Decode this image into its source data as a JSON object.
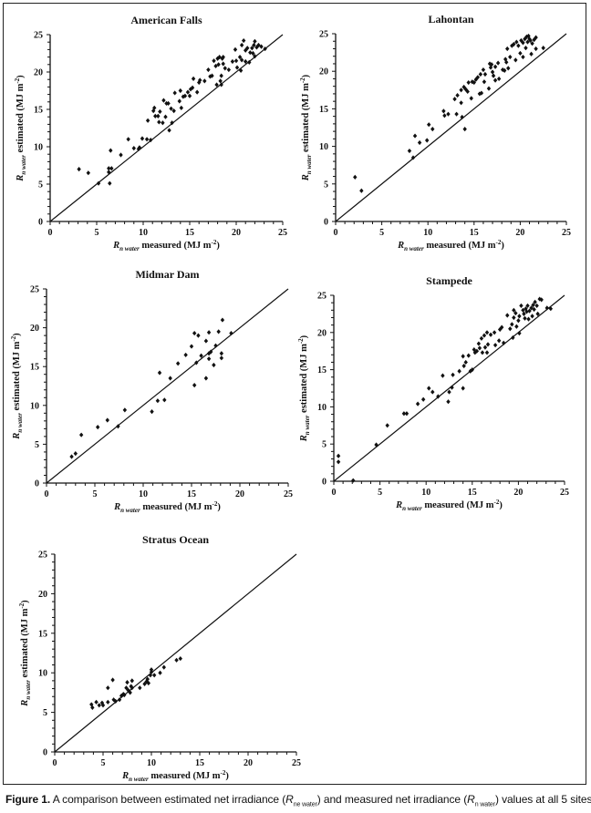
{
  "caption": {
    "label": "Figure 1.",
    "text1": " A comparison between estimated net irradiance (",
    "sym1": "R",
    "sub1": "ne water",
    "text2": ") and measured net irradiance (",
    "sym2": "R",
    "sub2": "n water",
    "text3": ") values at all 5 sites"
  },
  "axis_labels": {
    "symbol": "R",
    "subscript": "n water",
    "y_text": " estimated (MJ m",
    "x_text": " measured (MJ m",
    "exponent": "-2",
    "close": ")"
  },
  "chart_data": [
    {
      "type": "scatter",
      "title": "American Falls",
      "xlim": [
        0,
        25
      ],
      "ylim": [
        0,
        25
      ],
      "xticks": [
        0,
        5,
        10,
        15,
        20,
        25
      ],
      "yticks": [
        0,
        5,
        10,
        15,
        20,
        25
      ],
      "reference_line": "1:1",
      "points": [
        [
          3.1,
          7
        ],
        [
          4.1,
          6.5
        ],
        [
          5.2,
          5.1
        ],
        [
          6.3,
          7.1
        ],
        [
          6.3,
          6.6
        ],
        [
          6.4,
          5.1
        ],
        [
          6.5,
          9.5
        ],
        [
          6.6,
          7.1
        ],
        [
          7.6,
          8.9
        ],
        [
          8.4,
          11
        ],
        [
          9,
          9.8
        ],
        [
          9.5,
          9.7
        ],
        [
          9.6,
          9.9
        ],
        [
          9.9,
          11.1
        ],
        [
          10.4,
          11
        ],
        [
          10.5,
          13.5
        ],
        [
          10.8,
          10.9
        ],
        [
          11.1,
          14.8
        ],
        [
          11.2,
          15.2
        ],
        [
          11.3,
          14.1
        ],
        [
          11.6,
          14.1
        ],
        [
          11.7,
          13.3
        ],
        [
          11.8,
          14.7
        ],
        [
          12.1,
          13.2
        ],
        [
          12.2,
          16.2
        ],
        [
          12.4,
          14
        ],
        [
          12.5,
          15.8
        ],
        [
          12.7,
          15.8
        ],
        [
          12.8,
          12.2
        ],
        [
          13,
          15.1
        ],
        [
          13.1,
          13.2
        ],
        [
          13.3,
          14.8
        ],
        [
          13.4,
          17.2
        ],
        [
          13.9,
          16.1
        ],
        [
          14,
          17.5
        ],
        [
          14.1,
          15.2
        ],
        [
          14.3,
          16.7
        ],
        [
          14.5,
          16.8
        ],
        [
          14.8,
          17.3
        ],
        [
          15,
          16.8
        ],
        [
          15.1,
          17.7
        ],
        [
          15.3,
          17.9
        ],
        [
          15.4,
          19.1
        ],
        [
          15.8,
          17.3
        ],
        [
          16,
          18.6
        ],
        [
          16.1,
          18.9
        ],
        [
          16.6,
          18.8
        ],
        [
          17,
          20.3
        ],
        [
          17.2,
          19.4
        ],
        [
          17.4,
          19.5
        ],
        [
          17.6,
          21.5
        ],
        [
          17.8,
          20.8
        ],
        [
          17.9,
          18.3
        ],
        [
          18,
          21.8
        ],
        [
          18.1,
          21
        ],
        [
          18.2,
          22
        ],
        [
          18.3,
          18.8
        ],
        [
          18.4,
          19.5
        ],
        [
          18.4,
          18.3
        ],
        [
          18.5,
          21.8
        ],
        [
          18.6,
          22
        ],
        [
          18.6,
          21.1
        ],
        [
          18.8,
          20.5
        ],
        [
          19.2,
          20.3
        ],
        [
          19.6,
          21.4
        ],
        [
          19.9,
          23
        ],
        [
          20,
          21.5
        ],
        [
          20.1,
          20.6
        ],
        [
          20.4,
          22
        ],
        [
          20.5,
          20.2
        ],
        [
          20.6,
          21.6
        ],
        [
          20.6,
          23.6
        ],
        [
          20.8,
          24.2
        ],
        [
          21,
          22.9
        ],
        [
          21,
          21.4
        ],
        [
          21.2,
          23.2
        ],
        [
          21.4,
          21.3
        ],
        [
          21.5,
          22.6
        ],
        [
          21.7,
          23.2
        ],
        [
          21.8,
          22.5
        ],
        [
          21.9,
          23.6
        ],
        [
          22,
          22.1
        ],
        [
          22,
          24.1
        ],
        [
          22.2,
          23.3
        ],
        [
          22.4,
          23.6
        ],
        [
          22.7,
          23.4
        ],
        [
          23.1,
          23.1
        ]
      ]
    },
    {
      "type": "scatter",
      "title": "Lahontan",
      "xlim": [
        0,
        25
      ],
      "ylim": [
        0,
        25
      ],
      "xticks": [
        0,
        5,
        10,
        15,
        20,
        25
      ],
      "yticks": [
        0,
        5,
        10,
        15,
        20,
        25
      ],
      "reference_line": "1:1",
      "points": [
        [
          2.1,
          5.9
        ],
        [
          2.8,
          4.1
        ],
        [
          8,
          9.4
        ],
        [
          8.4,
          8.5
        ],
        [
          8.6,
          11.4
        ],
        [
          9.1,
          10.5
        ],
        [
          9.9,
          10.8
        ],
        [
          10.1,
          12.9
        ],
        [
          10.5,
          12.3
        ],
        [
          11.7,
          14.7
        ],
        [
          11.8,
          14.1
        ],
        [
          12.2,
          14.3
        ],
        [
          12.9,
          16.3
        ],
        [
          13.1,
          14.3
        ],
        [
          13.2,
          16.8
        ],
        [
          13.6,
          15.8
        ],
        [
          13.6,
          17.5
        ],
        [
          13.7,
          13.9
        ],
        [
          13.9,
          17.9
        ],
        [
          14,
          12.3
        ],
        [
          14.1,
          17.6
        ],
        [
          14.3,
          17.3
        ],
        [
          14.4,
          18.5
        ],
        [
          14.7,
          16.4
        ],
        [
          14.8,
          18.6
        ],
        [
          15,
          18.5
        ],
        [
          15.2,
          18.9
        ],
        [
          15.4,
          19.2
        ],
        [
          15.6,
          17
        ],
        [
          15.7,
          19.6
        ],
        [
          15.8,
          17.1
        ],
        [
          16,
          20.2
        ],
        [
          16.1,
          18.6
        ],
        [
          16.2,
          19.6
        ],
        [
          16.6,
          17.7
        ],
        [
          16.7,
          21
        ],
        [
          16.8,
          20.5
        ],
        [
          16.9,
          20.9
        ],
        [
          17,
          19.9
        ],
        [
          17.1,
          19.4
        ],
        [
          17.3,
          18.8
        ],
        [
          17.3,
          20.6
        ],
        [
          17.6,
          21.1
        ],
        [
          17.7,
          19
        ],
        [
          18.1,
          20.2
        ],
        [
          18.3,
          20.1
        ],
        [
          18.4,
          21.6
        ],
        [
          18.5,
          21.2
        ],
        [
          18.6,
          23
        ],
        [
          18.7,
          20.4
        ],
        [
          18.9,
          21.9
        ],
        [
          19.1,
          23.4
        ],
        [
          19.3,
          23.6
        ],
        [
          19.5,
          21.5
        ],
        [
          19.6,
          23.9
        ],
        [
          19.8,
          23.4
        ],
        [
          20,
          22.4
        ],
        [
          20.1,
          24.1
        ],
        [
          20.3,
          23.8
        ],
        [
          20.3,
          21.9
        ],
        [
          20.5,
          24.3
        ],
        [
          20.6,
          23.1
        ],
        [
          20.7,
          24.6
        ],
        [
          20.8,
          23.9
        ],
        [
          20.9,
          24.7
        ],
        [
          21,
          24.3
        ],
        [
          21.1,
          24.1
        ],
        [
          21.2,
          22.3
        ],
        [
          21.3,
          23.7
        ],
        [
          21.5,
          24.2
        ],
        [
          21.7,
          24.5
        ],
        [
          21.7,
          23
        ],
        [
          22.5,
          23.1
        ]
      ]
    },
    {
      "type": "scatter",
      "title": "Midmar Dam",
      "xlim": [
        0,
        25
      ],
      "ylim": [
        0,
        25
      ],
      "xticks": [
        0,
        5,
        10,
        15,
        20,
        25
      ],
      "yticks": [
        0,
        5,
        10,
        15,
        20,
        25
      ],
      "reference_line": "1:1",
      "points": [
        [
          2.6,
          3.4
        ],
        [
          3,
          3.8
        ],
        [
          3.6,
          6.2
        ],
        [
          5.3,
          7.2
        ],
        [
          6.3,
          8.1
        ],
        [
          7.4,
          7.3
        ],
        [
          8.1,
          9.4
        ],
        [
          10.9,
          9.2
        ],
        [
          11.5,
          10.6
        ],
        [
          11.7,
          14.2
        ],
        [
          12.2,
          10.7
        ],
        [
          12.8,
          13.5
        ],
        [
          13.6,
          15.4
        ],
        [
          14.4,
          16.5
        ],
        [
          15,
          17.6
        ],
        [
          15.3,
          19.3
        ],
        [
          15.3,
          12.6
        ],
        [
          15.5,
          15.5
        ],
        [
          15.7,
          19
        ],
        [
          16,
          16.4
        ],
        [
          16.5,
          13.5
        ],
        [
          16.5,
          18.3
        ],
        [
          16.8,
          19.4
        ],
        [
          16.8,
          16.7
        ],
        [
          16.8,
          16
        ],
        [
          17,
          16.9
        ],
        [
          17.3,
          15.2
        ],
        [
          17.5,
          17.7
        ],
        [
          17.8,
          19.5
        ],
        [
          18.1,
          16.7
        ],
        [
          18.1,
          16.1
        ],
        [
          18.2,
          21
        ],
        [
          19.1,
          19.3
        ]
      ]
    },
    {
      "type": "scatter",
      "title": "Stampede",
      "xlim": [
        0,
        25
      ],
      "ylim": [
        0,
        25
      ],
      "xticks": [
        0,
        5,
        10,
        15,
        20,
        25
      ],
      "yticks": [
        0,
        5,
        10,
        15,
        20,
        25
      ],
      "reference_line": "1:1",
      "points": [
        [
          0.5,
          3.4
        ],
        [
          0.5,
          2.6
        ],
        [
          2.1,
          0.1
        ],
        [
          4.6,
          4.9
        ],
        [
          5.8,
          7.5
        ],
        [
          7.6,
          9.1
        ],
        [
          7.9,
          9.1
        ],
        [
          9.1,
          10.4
        ],
        [
          9.7,
          11
        ],
        [
          10.3,
          12.5
        ],
        [
          10.7,
          12
        ],
        [
          11.3,
          11.4
        ],
        [
          11.8,
          14.2
        ],
        [
          12.4,
          10.7
        ],
        [
          12.5,
          12
        ],
        [
          12.8,
          12.6
        ],
        [
          12.9,
          14.3
        ],
        [
          13.6,
          14.8
        ],
        [
          14,
          12.5
        ],
        [
          14,
          16.8
        ],
        [
          14.1,
          15.5
        ],
        [
          14.3,
          16
        ],
        [
          14.6,
          16.9
        ],
        [
          14.8,
          14.8
        ],
        [
          15,
          15
        ],
        [
          15.2,
          17.7
        ],
        [
          15.3,
          17.3
        ],
        [
          15.5,
          17.5
        ],
        [
          15.7,
          18.5
        ],
        [
          15.8,
          17.9
        ],
        [
          16,
          19.2
        ],
        [
          16.1,
          17.3
        ],
        [
          16.3,
          19.6
        ],
        [
          16.4,
          18
        ],
        [
          16.6,
          20
        ],
        [
          16.6,
          17.3
        ],
        [
          16.7,
          18.4
        ],
        [
          17,
          19.7
        ],
        [
          17.4,
          20
        ],
        [
          17.5,
          18.3
        ],
        [
          17.9,
          18.9
        ],
        [
          18,
          20.4
        ],
        [
          18.2,
          20.7
        ],
        [
          18.4,
          18.6
        ],
        [
          18.8,
          22.3
        ],
        [
          19.1,
          20.5
        ],
        [
          19.3,
          21.1
        ],
        [
          19.4,
          19.3
        ],
        [
          19.5,
          23
        ],
        [
          19.5,
          22
        ],
        [
          19.7,
          22.6
        ],
        [
          19.8,
          20.8
        ],
        [
          20,
          21.6
        ],
        [
          20.1,
          22.2
        ],
        [
          20.1,
          19.9
        ],
        [
          20.3,
          23.6
        ],
        [
          20.5,
          23
        ],
        [
          20.6,
          22.5
        ],
        [
          20.7,
          21.9
        ],
        [
          20.8,
          23.2
        ],
        [
          20.9,
          22.8
        ],
        [
          21,
          23.6
        ],
        [
          21.1,
          21.8
        ],
        [
          21.2,
          22.9
        ],
        [
          21.4,
          23.3
        ],
        [
          21.5,
          22.2
        ],
        [
          21.6,
          23.7
        ],
        [
          21.7,
          23.1
        ],
        [
          21.8,
          24.1
        ],
        [
          22,
          23.6
        ],
        [
          22.1,
          22.5
        ],
        [
          22.3,
          24.5
        ],
        [
          22.5,
          24.4
        ],
        [
          23.1,
          23.3
        ],
        [
          23.5,
          23.2
        ]
      ]
    },
    {
      "type": "scatter",
      "title": "Stratus Ocean",
      "xlim": [
        0,
        25
      ],
      "ylim": [
        0,
        25
      ],
      "xticks": [
        0,
        5,
        10,
        15,
        20,
        25
      ],
      "yticks": [
        0,
        5,
        10,
        15,
        20,
        25
      ],
      "reference_line": "1:1",
      "points": [
        [
          3.8,
          6
        ],
        [
          3.9,
          5.6
        ],
        [
          4.3,
          6.3
        ],
        [
          4.6,
          5.9
        ],
        [
          4.9,
          6.2
        ],
        [
          5,
          5.9
        ],
        [
          5.5,
          6.3
        ],
        [
          5.5,
          8.1
        ],
        [
          6,
          9.1
        ],
        [
          6.1,
          6.6
        ],
        [
          6.3,
          6.4
        ],
        [
          6.7,
          6.6
        ],
        [
          6.9,
          7.1
        ],
        [
          7.1,
          7.3
        ],
        [
          7.2,
          7.2
        ],
        [
          7.4,
          8.1
        ],
        [
          7.5,
          8.8
        ],
        [
          7.6,
          7.8
        ],
        [
          7.8,
          7.5
        ],
        [
          7.9,
          8.3
        ],
        [
          8,
          9
        ],
        [
          8,
          8.1
        ],
        [
          8.8,
          8.1
        ],
        [
          9.3,
          8.6
        ],
        [
          9.5,
          8.9
        ],
        [
          9.6,
          9.2
        ],
        [
          9.7,
          8.7
        ],
        [
          9.9,
          9.7
        ],
        [
          10,
          10.1
        ],
        [
          10,
          10.4
        ],
        [
          10.3,
          9.7
        ],
        [
          10.9,
          10
        ],
        [
          11.3,
          10.7
        ],
        [
          12.6,
          11.6
        ],
        [
          13,
          11.8
        ]
      ]
    }
  ]
}
